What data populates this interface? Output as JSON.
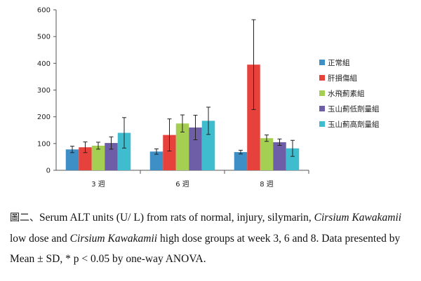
{
  "chart_data": {
    "type": "bar",
    "categories": [
      "3 週",
      "6 週",
      "8 週"
    ],
    "series": [
      {
        "name": "正常組",
        "color": "#3f8fc7",
        "values": [
          78,
          70,
          68
        ],
        "errors": [
          12,
          10,
          7
        ]
      },
      {
        "name": "肝損傷組",
        "color": "#e6413a",
        "values": [
          86,
          132,
          395
        ],
        "errors": [
          20,
          60,
          168
        ]
      },
      {
        "name": "水飛薊素組",
        "color": "#a5cf52",
        "values": [
          92,
          175,
          120
        ],
        "errors": [
          13,
          32,
          12
        ]
      },
      {
        "name": "玉山薊低劑量組",
        "color": "#6e5ea8",
        "values": [
          102,
          160,
          105
        ],
        "errors": [
          23,
          46,
          12
        ]
      },
      {
        "name": "玉山薊高劑量組",
        "color": "#3fbccd",
        "values": [
          140,
          185,
          82
        ],
        "errors": [
          57,
          51,
          30
        ]
      }
    ],
    "yticks": [
      0,
      100,
      200,
      300,
      400,
      500,
      600
    ],
    "ylim": [
      0,
      600
    ],
    "legend_position": "right"
  },
  "caption": {
    "prefix": "圖二、",
    "parts": [
      {
        "text": "Serum ALT units (U/ L) from rats of normal, injury, silymarin, ",
        "italic": false
      },
      {
        "text": "Cirsium Kawakamii",
        "italic": true
      },
      {
        "text": " low dose and ",
        "italic": false
      },
      {
        "text": "Cirsium Kawakamii",
        "italic": true
      },
      {
        "text": " high dose groups at week 3, 6 and 8. Data presented by Mean ± SD, * p < 0.05 by one-way ANOVA.",
        "italic": false
      }
    ]
  }
}
